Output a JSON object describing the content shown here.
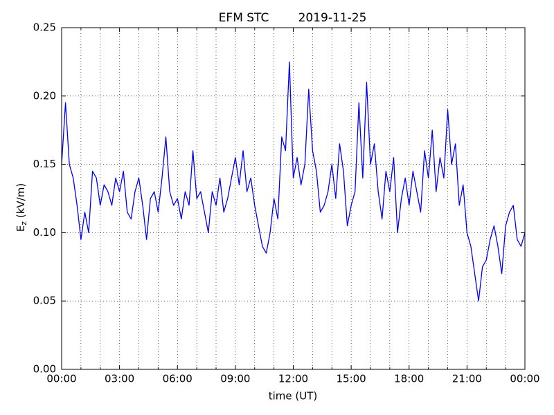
{
  "chart_data": {
    "type": "line",
    "title": "EFM STC",
    "date": "2019-11-25",
    "xlabel": "time (UT)",
    "ylabel": {
      "base": "E",
      "sub": "z",
      "rest": " (kV/m)"
    },
    "x": [
      0,
      0.2,
      0.4,
      0.6,
      0.8,
      1,
      1.2,
      1.4,
      1.6,
      1.8,
      2,
      2.2,
      2.4,
      2.6,
      2.8,
      3,
      3.2,
      3.4,
      3.6,
      3.8,
      4,
      4.2,
      4.4,
      4.6,
      4.8,
      5,
      5.2,
      5.4,
      5.6,
      5.8,
      6,
      6.2,
      6.4,
      6.6,
      6.8,
      7,
      7.2,
      7.4,
      7.6,
      7.8,
      8,
      8.2,
      8.4,
      8.6,
      8.8,
      9,
      9.2,
      9.4,
      9.6,
      9.8,
      10,
      10.2,
      10.4,
      10.6,
      10.8,
      11,
      11.2,
      11.4,
      11.6,
      11.8,
      12,
      12.2,
      12.4,
      12.6,
      12.8,
      13,
      13.2,
      13.4,
      13.6,
      13.8,
      14,
      14.2,
      14.4,
      14.6,
      14.8,
      15,
      15.2,
      15.4,
      15.6,
      15.8,
      16,
      16.2,
      16.4,
      16.6,
      16.8,
      17,
      17.2,
      17.4,
      17.6,
      17.8,
      18,
      18.2,
      18.4,
      18.6,
      18.8,
      19,
      19.2,
      19.4,
      19.6,
      19.8,
      20,
      20.2,
      20.4,
      20.6,
      20.8,
      21,
      21.2,
      21.4,
      21.6,
      21.8,
      22,
      22.2,
      22.4,
      22.6,
      22.8,
      23,
      23.2,
      23.4,
      23.6,
      23.8,
      24
    ],
    "series": [
      {
        "name": "Ez",
        "color": "#0000ff",
        "values": [
          0.15,
          0.195,
          0.15,
          0.14,
          0.12,
          0.095,
          0.115,
          0.1,
          0.145,
          0.14,
          0.12,
          0.135,
          0.13,
          0.12,
          0.14,
          0.13,
          0.145,
          0.115,
          0.11,
          0.13,
          0.14,
          0.12,
          0.095,
          0.125,
          0.13,
          0.115,
          0.14,
          0.17,
          0.13,
          0.12,
          0.125,
          0.11,
          0.13,
          0.12,
          0.16,
          0.125,
          0.13,
          0.115,
          0.1,
          0.13,
          0.12,
          0.14,
          0.115,
          0.125,
          0.14,
          0.155,
          0.135,
          0.16,
          0.13,
          0.14,
          0.12,
          0.105,
          0.09,
          0.085,
          0.1,
          0.125,
          0.11,
          0.17,
          0.16,
          0.225,
          0.14,
          0.155,
          0.135,
          0.15,
          0.205,
          0.16,
          0.145,
          0.115,
          0.12,
          0.13,
          0.15,
          0.125,
          0.165,
          0.145,
          0.105,
          0.12,
          0.13,
          0.195,
          0.14,
          0.21,
          0.15,
          0.165,
          0.13,
          0.11,
          0.145,
          0.13,
          0.155,
          0.1,
          0.125,
          0.14,
          0.12,
          0.145,
          0.13,
          0.115,
          0.16,
          0.14,
          0.175,
          0.13,
          0.155,
          0.14,
          0.19,
          0.15,
          0.165,
          0.12,
          0.135,
          0.1,
          0.09,
          0.07,
          0.05,
          0.075,
          0.08,
          0.095,
          0.105,
          0.09,
          0.07,
          0.105,
          0.115,
          0.12,
          0.095,
          0.09,
          0.1
        ]
      }
    ],
    "xlim": [
      0,
      24
    ],
    "xticks": [
      {
        "value": 0,
        "label": "00:00"
      },
      {
        "value": 3,
        "label": "03:00"
      },
      {
        "value": 6,
        "label": "06:00"
      },
      {
        "value": 9,
        "label": "09:00"
      },
      {
        "value": 12,
        "label": "12:00"
      },
      {
        "value": 15,
        "label": "15:00"
      },
      {
        "value": 18,
        "label": "18:00"
      },
      {
        "value": 21,
        "label": "21:00"
      },
      {
        "value": 24,
        "label": "00:00"
      }
    ],
    "xminorticks": [
      1,
      2,
      4,
      5,
      7,
      8,
      10,
      11,
      13,
      14,
      16,
      17,
      19,
      20,
      22,
      23
    ],
    "ylim": [
      0,
      0.25
    ],
    "yticks": [
      {
        "value": 0,
        "label": "0.00"
      },
      0.05,
      {
        "value": 0.1,
        "label": "0.10"
      },
      0.15,
      {
        "value": 0.2,
        "label": "0.20"
      },
      0.25
    ],
    "grid": true
  }
}
